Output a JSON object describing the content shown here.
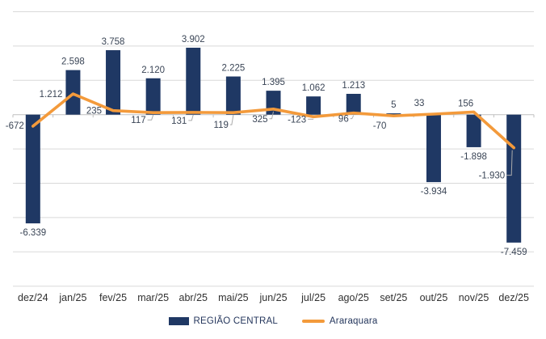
{
  "chart_data": {
    "type": "combo",
    "title": "",
    "xlabel": "",
    "ylabel": "",
    "categories": [
      "dez/24",
      "jan/25",
      "fev/25",
      "mar/25",
      "abr/25",
      "mai/25",
      "jun/25",
      "jul/25",
      "ago/25",
      "set/25",
      "out/25",
      "nov/25",
      "dez/25"
    ],
    "series": [
      {
        "name": "REGIÃO CENTRAL",
        "type": "bar",
        "color": "#1F3864",
        "values": [
          -6339,
          2598,
          3758,
          2120,
          3902,
          2225,
          1395,
          1062,
          1213,
          5,
          -3934,
          -1898,
          -7459
        ],
        "labels": [
          "-6.339",
          "2.598",
          "3.758",
          "2.120",
          "3.902",
          "2.225",
          "1.395",
          "1.062",
          "1.213",
          "5",
          "-3.934",
          "-1.898",
          "-7.459"
        ]
      },
      {
        "name": "Araraquara",
        "type": "line",
        "color": "#F39A3B",
        "values": [
          -672,
          1212,
          235,
          117,
          131,
          119,
          325,
          -123,
          96,
          -70,
          33,
          156,
          -1930
        ],
        "labels": [
          "-672",
          "1.212",
          "235",
          "117",
          "131",
          "119",
          "325",
          "-123",
          "96",
          "-70",
          "33",
          "156",
          "-1.930"
        ]
      }
    ],
    "ylim": [
      -10000,
      6000
    ],
    "grid_step": 2000,
    "grid": true,
    "y_axis_tick_labels": false,
    "legend_position": "bottom"
  },
  "colors": {
    "bar": "#1F3864",
    "line": "#F39A3B",
    "grid": "#D9D9D9",
    "axis": "#BFBFBF",
    "data_label": "#3A4556",
    "axis_label": "#303030",
    "leader": "#ABABAB",
    "legend_text": "#24365C"
  }
}
